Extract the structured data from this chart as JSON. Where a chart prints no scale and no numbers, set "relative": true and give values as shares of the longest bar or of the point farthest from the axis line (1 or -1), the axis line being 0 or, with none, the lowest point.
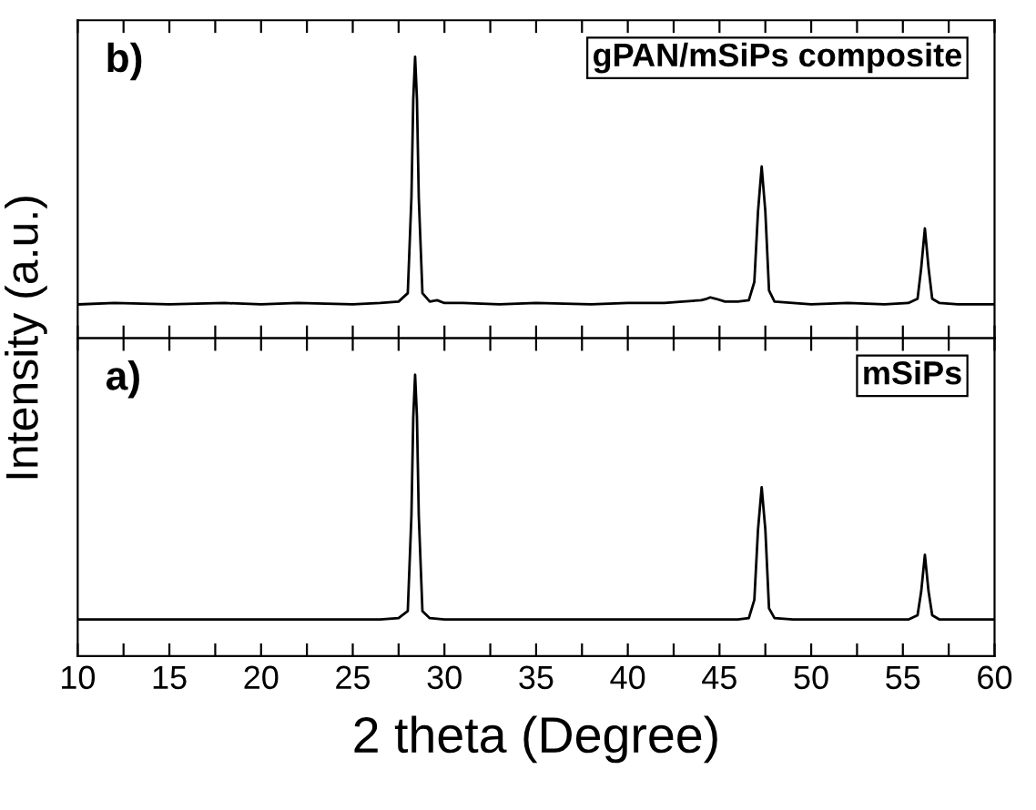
{
  "chart_data": [
    {
      "type": "line",
      "relative": true,
      "ylabel": "Intensity (a.u.)",
      "annotations": [
        "b)"
      ],
      "tick_labels": false,
      "grid": false,
      "legend": "top right",
      "xlim": [
        10,
        60
      ],
      "xticks": [
        10,
        {
          "value": 12.5,
          "label": null
        },
        15,
        {
          "value": 17.5,
          "label": null
        },
        20,
        {
          "value": 22.5,
          "label": null
        },
        25,
        {
          "value": 27.5,
          "label": null
        },
        30,
        {
          "value": 32.5,
          "label": null
        },
        35,
        {
          "value": 37.5,
          "label": null
        },
        40,
        {
          "value": 42.5,
          "label": null
        },
        45,
        {
          "value": 47.5,
          "label": null
        },
        50,
        {
          "value": 52.5,
          "label": null
        },
        55,
        {
          "value": 57.5,
          "label": null
        },
        60
      ],
      "series": [
        {
          "name": "gPAN/mSiPs composite",
          "color": "#000000",
          "x": [
            10,
            12,
            15,
            18,
            20,
            22,
            25,
            26.5,
            27.5,
            28.0,
            28.2,
            28.3,
            28.4,
            28.5,
            28.6,
            28.8,
            29.2,
            29.6,
            30,
            31,
            33,
            35,
            38,
            40,
            42,
            43,
            44,
            44.3,
            44.5,
            44.8,
            45.3,
            46,
            46.6,
            46.9,
            47.1,
            47.3,
            47.5,
            47.7,
            48,
            49,
            50,
            52,
            54,
            55.3,
            55.8,
            56.0,
            56.2,
            56.4,
            56.6,
            57,
            58,
            60
          ],
          "values": [
            0.12,
            0.125,
            0.12,
            0.125,
            0.12,
            0.125,
            0.12,
            0.125,
            0.13,
            0.16,
            0.5,
            0.85,
            1,
            0.85,
            0.5,
            0.16,
            0.13,
            0.135,
            0.125,
            0.125,
            0.12,
            0.125,
            0.12,
            0.125,
            0.125,
            0.13,
            0.135,
            0.14,
            0.145,
            0.14,
            0.13,
            0.13,
            0.135,
            0.2,
            0.45,
            0.61,
            0.45,
            0.17,
            0.13,
            0.125,
            0.12,
            0.125,
            0.12,
            0.125,
            0.14,
            0.25,
            0.39,
            0.25,
            0.14,
            0.125,
            0.12,
            0.12
          ]
        }
      ]
    },
    {
      "type": "line",
      "relative": true,
      "xlabel": "2 theta (Degree)",
      "annotations": [
        "a)"
      ],
      "tick_labels": "x",
      "grid": false,
      "legend": "top right",
      "xlim": [
        10,
        60
      ],
      "xticks": [
        10,
        {
          "value": 12.5,
          "label": null
        },
        15,
        {
          "value": 17.5,
          "label": null
        },
        20,
        {
          "value": 22.5,
          "label": null
        },
        25,
        {
          "value": 27.5,
          "label": null
        },
        30,
        {
          "value": 32.5,
          "label": null
        },
        35,
        {
          "value": 37.5,
          "label": null
        },
        40,
        {
          "value": 42.5,
          "label": null
        },
        45,
        {
          "value": 47.5,
          "label": null
        },
        50,
        {
          "value": 52.5,
          "label": null
        },
        55,
        {
          "value": 57.5,
          "label": null
        },
        60
      ],
      "series": [
        {
          "name": "mSiPs",
          "color": "#000000",
          "x": [
            10,
            12,
            15,
            18,
            20,
            22,
            25,
            26.5,
            27.5,
            28.0,
            28.2,
            28.3,
            28.4,
            28.5,
            28.6,
            28.8,
            29.2,
            30,
            32,
            35,
            38,
            40,
            42,
            44,
            45,
            46,
            46.6,
            46.9,
            47.1,
            47.3,
            47.5,
            47.7,
            48,
            49,
            50,
            52,
            54,
            55.3,
            55.8,
            56.0,
            56.2,
            56.4,
            56.6,
            57,
            58,
            60
          ],
          "values": [
            0.13,
            0.13,
            0.13,
            0.13,
            0.13,
            0.13,
            0.13,
            0.13,
            0.135,
            0.16,
            0.5,
            0.85,
            1,
            0.85,
            0.5,
            0.16,
            0.135,
            0.13,
            0.13,
            0.13,
            0.13,
            0.13,
            0.13,
            0.13,
            0.13,
            0.13,
            0.135,
            0.2,
            0.45,
            0.6,
            0.45,
            0.17,
            0.135,
            0.13,
            0.13,
            0.13,
            0.13,
            0.13,
            0.145,
            0.23,
            0.36,
            0.23,
            0.145,
            0.13,
            0.13,
            0.13
          ]
        }
      ]
    }
  ]
}
